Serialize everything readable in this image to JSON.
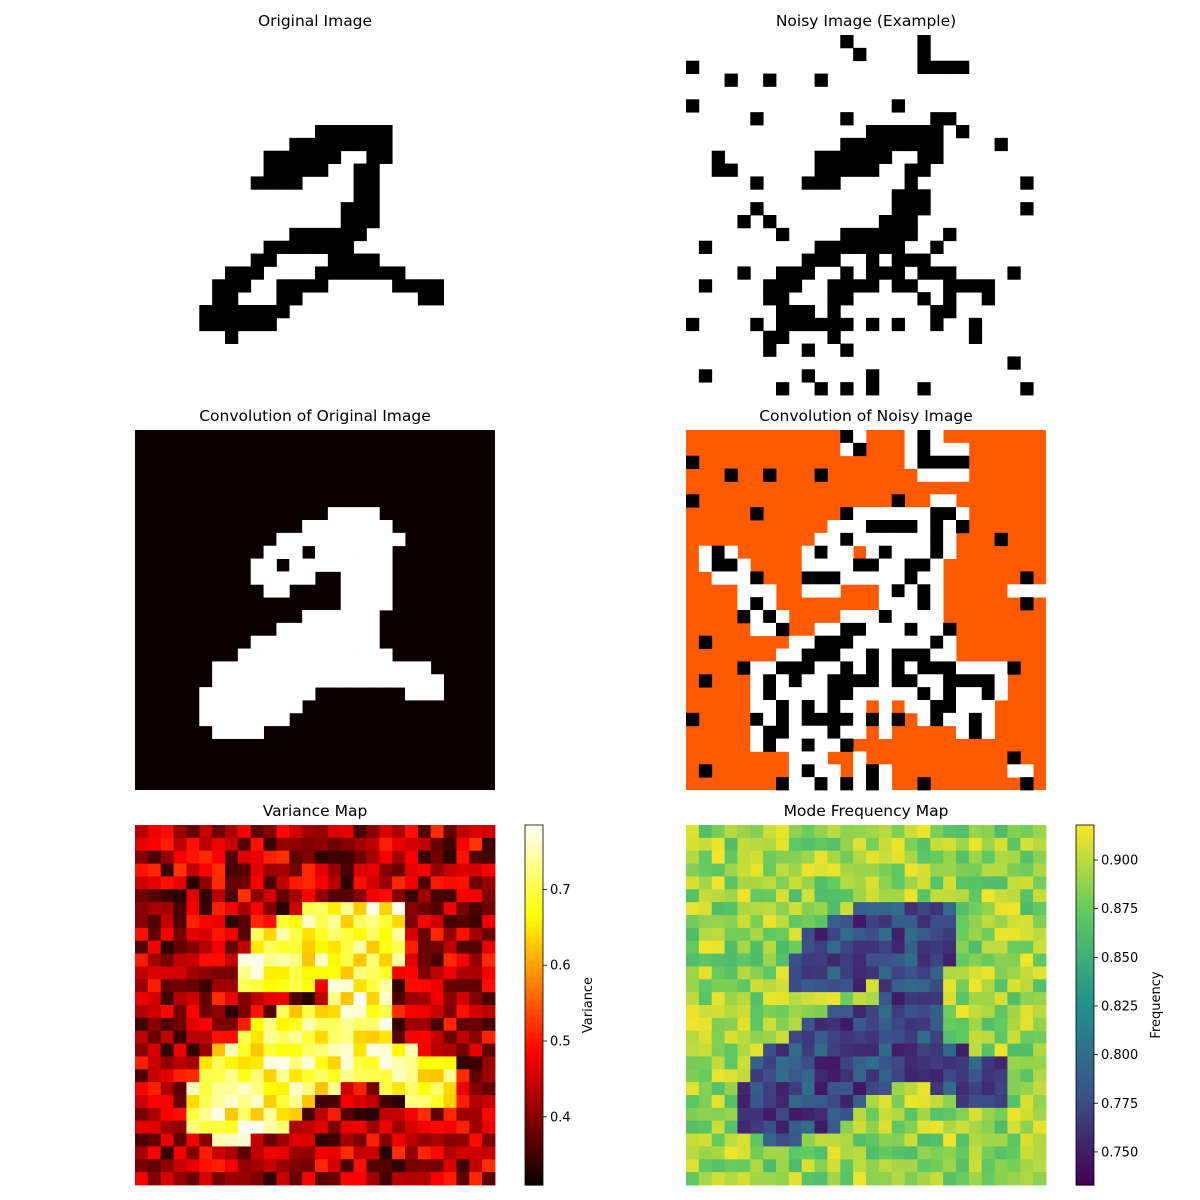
{
  "figure": {
    "layout": "3x2 grid of image panels"
  },
  "chart_data": [
    {
      "type": "heatmap",
      "panel": "original",
      "title": "Original Image",
      "grid": [
        28,
        28
      ],
      "colormap": "binary",
      "axes": "off",
      "pixels_on": [
        [
          7,
          14
        ],
        [
          7,
          15
        ],
        [
          7,
          16
        ],
        [
          7,
          17
        ],
        [
          7,
          18
        ],
        [
          7,
          19
        ],
        [
          8,
          12
        ],
        [
          8,
          13
        ],
        [
          8,
          14
        ],
        [
          8,
          15
        ],
        [
          8,
          16
        ],
        [
          8,
          17
        ],
        [
          8,
          18
        ],
        [
          8,
          19
        ],
        [
          9,
          10
        ],
        [
          9,
          11
        ],
        [
          9,
          12
        ],
        [
          9,
          13
        ],
        [
          9,
          14
        ],
        [
          9,
          15
        ],
        [
          9,
          18
        ],
        [
          9,
          19
        ],
        [
          10,
          10
        ],
        [
          10,
          11
        ],
        [
          10,
          12
        ],
        [
          10,
          13
        ],
        [
          10,
          14
        ],
        [
          10,
          17
        ],
        [
          10,
          18
        ],
        [
          11,
          9
        ],
        [
          11,
          10
        ],
        [
          11,
          11
        ],
        [
          11,
          12
        ],
        [
          11,
          17
        ],
        [
          11,
          18
        ],
        [
          12,
          17
        ],
        [
          12,
          18
        ],
        [
          13,
          16
        ],
        [
          13,
          17
        ],
        [
          13,
          18
        ],
        [
          14,
          16
        ],
        [
          14,
          17
        ],
        [
          14,
          18
        ],
        [
          15,
          12
        ],
        [
          15,
          13
        ],
        [
          15,
          14
        ],
        [
          15,
          15
        ],
        [
          15,
          16
        ],
        [
          15,
          17
        ],
        [
          16,
          10
        ],
        [
          16,
          11
        ],
        [
          16,
          12
        ],
        [
          16,
          13
        ],
        [
          16,
          14
        ],
        [
          16,
          15
        ],
        [
          16,
          16
        ],
        [
          17,
          9
        ],
        [
          17,
          10
        ],
        [
          17,
          15
        ],
        [
          17,
          16
        ],
        [
          17,
          17
        ],
        [
          17,
          18
        ],
        [
          18,
          7
        ],
        [
          18,
          8
        ],
        [
          18,
          9
        ],
        [
          18,
          14
        ],
        [
          18,
          15
        ],
        [
          18,
          16
        ],
        [
          18,
          17
        ],
        [
          18,
          18
        ],
        [
          18,
          19
        ],
        [
          18,
          20
        ],
        [
          19,
          6
        ],
        [
          19,
          7
        ],
        [
          19,
          8
        ],
        [
          19,
          11
        ],
        [
          19,
          12
        ],
        [
          19,
          13
        ],
        [
          19,
          14
        ],
        [
          19,
          20
        ],
        [
          19,
          21
        ],
        [
          19,
          22
        ],
        [
          19,
          23
        ],
        [
          20,
          6
        ],
        [
          20,
          7
        ],
        [
          20,
          11
        ],
        [
          20,
          12
        ],
        [
          20,
          22
        ],
        [
          20,
          23
        ],
        [
          21,
          5
        ],
        [
          21,
          6
        ],
        [
          21,
          7
        ],
        [
          21,
          8
        ],
        [
          21,
          9
        ],
        [
          21,
          10
        ],
        [
          21,
          11
        ],
        [
          22,
          5
        ],
        [
          22,
          6
        ],
        [
          22,
          7
        ],
        [
          22,
          8
        ],
        [
          22,
          9
        ],
        [
          22,
          10
        ],
        [
          23,
          7
        ]
      ]
    },
    {
      "type": "heatmap",
      "panel": "noisy",
      "title": "Noisy Image (Example)",
      "grid": [
        28,
        28
      ],
      "colormap": "binary",
      "axes": "off",
      "noise_level": 0.1,
      "pixels_on": [
        [
          7,
          14
        ],
        [
          7,
          15
        ],
        [
          7,
          16
        ],
        [
          7,
          17
        ],
        [
          7,
          18
        ],
        [
          7,
          19
        ],
        [
          8,
          12
        ],
        [
          8,
          13
        ],
        [
          8,
          14
        ],
        [
          8,
          15
        ],
        [
          8,
          16
        ],
        [
          8,
          17
        ],
        [
          8,
          18
        ],
        [
          8,
          19
        ],
        [
          9,
          10
        ],
        [
          9,
          11
        ],
        [
          9,
          12
        ],
        [
          9,
          13
        ],
        [
          9,
          14
        ],
        [
          9,
          15
        ],
        [
          9,
          18
        ],
        [
          9,
          19
        ],
        [
          10,
          10
        ],
        [
          10,
          11
        ],
        [
          10,
          12
        ],
        [
          10,
          13
        ],
        [
          10,
          14
        ],
        [
          10,
          17
        ],
        [
          10,
          18
        ],
        [
          11,
          9
        ],
        [
          11,
          10
        ],
        [
          11,
          11
        ],
        [
          11,
          12
        ],
        [
          11,
          17
        ],
        [
          11,
          18
        ],
        [
          12,
          17
        ],
        [
          12,
          18
        ],
        [
          13,
          16
        ],
        [
          13,
          17
        ],
        [
          13,
          18
        ],
        [
          14,
          16
        ],
        [
          14,
          17
        ],
        [
          14,
          18
        ],
        [
          15,
          12
        ],
        [
          15,
          13
        ],
        [
          15,
          14
        ],
        [
          15,
          15
        ],
        [
          15,
          16
        ],
        [
          15,
          17
        ],
        [
          16,
          10
        ],
        [
          16,
          11
        ],
        [
          16,
          12
        ],
        [
          16,
          13
        ],
        [
          16,
          14
        ],
        [
          16,
          15
        ],
        [
          16,
          16
        ],
        [
          17,
          9
        ],
        [
          17,
          10
        ],
        [
          17,
          15
        ],
        [
          17,
          16
        ],
        [
          17,
          17
        ],
        [
          17,
          18
        ],
        [
          18,
          7
        ],
        [
          18,
          8
        ],
        [
          18,
          9
        ],
        [
          18,
          14
        ],
        [
          18,
          15
        ],
        [
          18,
          16
        ],
        [
          18,
          17
        ],
        [
          18,
          18
        ],
        [
          18,
          19
        ],
        [
          18,
          20
        ],
        [
          19,
          6
        ],
        [
          19,
          7
        ],
        [
          19,
          8
        ],
        [
          19,
          11
        ],
        [
          19,
          12
        ],
        [
          19,
          13
        ],
        [
          19,
          14
        ],
        [
          19,
          20
        ],
        [
          19,
          21
        ],
        [
          19,
          22
        ],
        [
          19,
          23
        ],
        [
          20,
          6
        ],
        [
          20,
          7
        ],
        [
          20,
          11
        ],
        [
          20,
          12
        ],
        [
          20,
          22
        ],
        [
          20,
          23
        ],
        [
          21,
          5
        ],
        [
          21,
          6
        ],
        [
          21,
          7
        ],
        [
          21,
          8
        ],
        [
          21,
          9
        ],
        [
          21,
          10
        ],
        [
          21,
          11
        ],
        [
          22,
          5
        ],
        [
          22,
          6
        ],
        [
          22,
          7
        ],
        [
          22,
          8
        ],
        [
          22,
          9
        ],
        [
          22,
          10
        ],
        [
          23,
          7
        ]
      ]
    },
    {
      "type": "heatmap",
      "panel": "conv_original",
      "title": "Convolution of Original Image",
      "grid": [
        28,
        28
      ],
      "colormap": "hot",
      "axes": "off"
    },
    {
      "type": "heatmap",
      "panel": "conv_noisy",
      "title": "Convolution of Noisy Image",
      "grid": [
        28,
        28
      ],
      "colormap": "hot",
      "axes": "off"
    },
    {
      "type": "heatmap",
      "panel": "variance",
      "title": "Variance Map",
      "grid": [
        28,
        28
      ],
      "colormap": "hot",
      "axes": "off",
      "colorbar": {
        "label": "Variance",
        "vmin": 0.31,
        "vmax": 0.785,
        "ticks": [
          0.4,
          0.5,
          0.6,
          0.7
        ],
        "tick_labels": [
          "0.4",
          "0.5",
          "0.6",
          "0.7"
        ]
      },
      "background_range": [
        0.33,
        0.52
      ],
      "digit_range": [
        0.62,
        0.78
      ]
    },
    {
      "type": "heatmap",
      "panel": "mode_frequency",
      "title": "Mode Frequency Map",
      "grid": [
        28,
        28
      ],
      "colormap": "viridis",
      "axes": "off",
      "colorbar": {
        "label": "Frequency",
        "vmin": 0.733,
        "vmax": 0.918,
        "ticks": [
          0.75,
          0.775,
          0.8,
          0.825,
          0.85,
          0.875,
          0.9
        ],
        "tick_labels": [
          "0.750",
          "0.775",
          "0.800",
          "0.825",
          "0.850",
          "0.875",
          "0.900"
        ]
      },
      "background_range": [
        0.86,
        0.915
      ],
      "digit_range": [
        0.745,
        0.8
      ]
    }
  ]
}
